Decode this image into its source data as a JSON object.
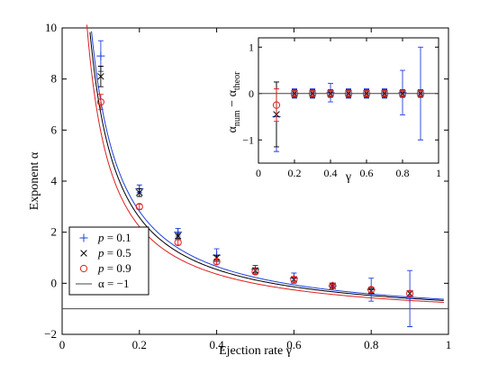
{
  "chart_data": [
    {
      "id": "main",
      "type": "scatter",
      "xlabel": "Ejection rate γ",
      "ylabel": "Exponent α",
      "xlim": [
        0,
        1
      ],
      "ylim": [
        -2,
        10
      ],
      "xticks": [
        0,
        0.2,
        0.4,
        0.6,
        0.8,
        1
      ],
      "xtick_labels": [
        "0",
        "0.2",
        "0.4",
        "0.6",
        "0.8",
        "1"
      ],
      "yticks": [
        -2,
        0,
        2,
        4,
        6,
        8,
        10
      ],
      "ytick_labels": [
        "−2",
        "0",
        "2",
        "4",
        "6",
        "8",
        "10"
      ],
      "grid": false,
      "legend_position": "bottom-left",
      "legend": [
        {
          "p_label": "p",
          "eq": " = 0.1",
          "marker": "plus",
          "color": "#1f3fdc"
        },
        {
          "p_label": "p",
          "eq": " = 0.5",
          "marker": "cross",
          "color": "#000000"
        },
        {
          "p_label": "p",
          "eq": " = 0.9",
          "marker": "circle",
          "color": "#e02020"
        },
        {
          "p_label": "",
          "eq": "α = −1",
          "marker": "line",
          "color": "#444444"
        }
      ],
      "series": [
        {
          "name": "p = 0.1",
          "marker": "plus",
          "color": "#1f3fdc",
          "x": [
            0.1,
            0.2,
            0.3,
            0.4,
            0.5,
            0.6,
            0.7,
            0.8,
            0.9
          ],
          "y": [
            8.9,
            3.7,
            2.0,
            1.1,
            0.55,
            0.2,
            -0.1,
            -0.25,
            -0.6
          ],
          "err": [
            0.6,
            0.15,
            0.15,
            0.25,
            0.15,
            0.2,
            0.1,
            0.45,
            1.1
          ]
        },
        {
          "name": "p = 0.5",
          "marker": "cross",
          "color": "#000000",
          "x": [
            0.1,
            0.2,
            0.3,
            0.4,
            0.5,
            0.6,
            0.7,
            0.8,
            0.9
          ],
          "y": [
            8.1,
            3.55,
            1.85,
            1.0,
            0.5,
            0.15,
            -0.1,
            -0.3,
            -0.4
          ],
          "err": [
            0.4,
            0.15,
            0.1,
            0.1,
            0.1,
            0.1,
            0.1,
            0.1,
            0.1
          ]
        },
        {
          "name": "p = 0.9",
          "marker": "circle",
          "color": "#e02020",
          "x": [
            0.1,
            0.2,
            0.3,
            0.4,
            0.5,
            0.6,
            0.7,
            0.8,
            0.9
          ],
          "y": [
            7.1,
            3.0,
            1.6,
            0.85,
            0.45,
            0.15,
            -0.1,
            -0.25,
            -0.4
          ],
          "err": [
            0.3,
            0.1,
            0.1,
            0.1,
            0.1,
            0.1,
            0.05,
            0.1,
            0.1
          ]
        }
      ],
      "curves": [
        {
          "color": "#1f3fdc",
          "scale": 1.08
        },
        {
          "color": "#000000",
          "scale": 1.02
        },
        {
          "color": "#e02020",
          "scale": 0.93
        }
      ],
      "reference_line": {
        "y": -1,
        "color": "#444444"
      }
    },
    {
      "id": "inset",
      "type": "scatter",
      "xlabel": "γ",
      "ylabel_parts": [
        "α",
        "num",
        " − α",
        "theor"
      ],
      "xlim": [
        0,
        1
      ],
      "ylim": [
        -1.5,
        1.2
      ],
      "xticks": [
        0,
        0.2,
        0.4,
        0.6,
        0.8,
        1
      ],
      "xtick_labels": [
        "0",
        "0.2",
        "0.4",
        "0.6",
        "0.8",
        "1"
      ],
      "yticks": [
        -1,
        0,
        1
      ],
      "ytick_labels": [
        "−1",
        "0",
        "1"
      ],
      "zero_line": {
        "y": 0
      },
      "series": [
        {
          "name": "p = 0.1",
          "marker": "plus",
          "color": "#1f3fdc",
          "x": [
            0.1,
            0.2,
            0.3,
            0.4,
            0.5,
            0.6,
            0.7,
            0.8,
            0.9
          ],
          "y": [
            -0.5,
            0.0,
            0.0,
            0.02,
            0.0,
            0.0,
            0.0,
            0.02,
            0.0
          ],
          "err": [
            0.75,
            0.1,
            0.1,
            0.2,
            0.1,
            0.1,
            0.1,
            0.48,
            1.0
          ]
        },
        {
          "name": "p = 0.5",
          "marker": "cross",
          "color": "#000000",
          "x": [
            0.1,
            0.2,
            0.3,
            0.4,
            0.5,
            0.6,
            0.7,
            0.8,
            0.9
          ],
          "y": [
            -0.45,
            0.0,
            0.0,
            0.0,
            0.0,
            0.0,
            0.0,
            0.0,
            0.0
          ],
          "err": [
            0.7,
            0.08,
            0.08,
            0.08,
            0.08,
            0.08,
            0.08,
            0.08,
            0.08
          ]
        },
        {
          "name": "p = 0.9",
          "marker": "circle",
          "color": "#e02020",
          "x": [
            0.1,
            0.2,
            0.3,
            0.4,
            0.5,
            0.6,
            0.7,
            0.8,
            0.9
          ],
          "y": [
            -0.25,
            0.0,
            0.0,
            0.0,
            0.0,
            0.0,
            0.0,
            0.0,
            0.0
          ],
          "err": [
            0.35,
            0.05,
            0.05,
            0.05,
            0.05,
            0.05,
            0.05,
            0.05,
            0.05
          ]
        }
      ]
    }
  ]
}
